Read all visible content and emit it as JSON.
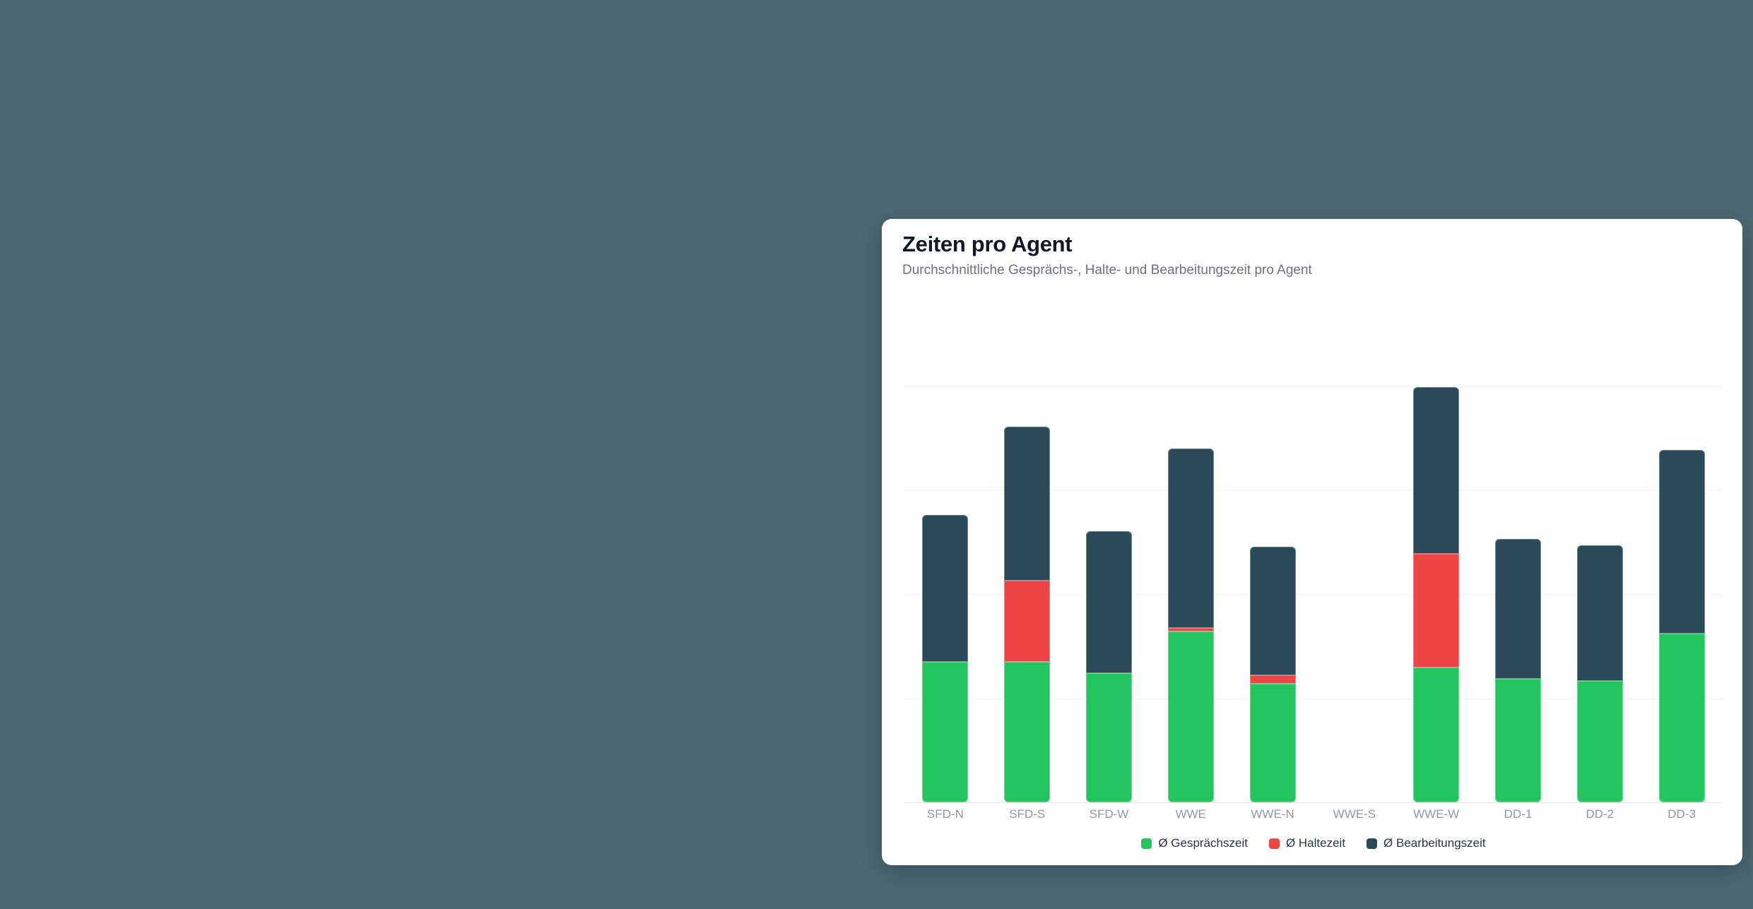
{
  "page": {
    "background_color": "#4C6871"
  },
  "card": {
    "title": "Zeiten pro Agent",
    "subtitle": "Durchschnittliche Gesprächs-, Halte- und Bearbeitungszeit pro Agent"
  },
  "chart_data": {
    "type": "bar",
    "stacked": true,
    "title": "Zeiten pro Agent",
    "subtitle": "Durchschnittliche Gesprächs-, Halte- und Bearbeitungszeit pro Agent",
    "xlabel": "",
    "ylabel": "",
    "categories": [
      "SFD-N",
      "SFD-S",
      "SFD-W",
      "WWE",
      "WWE-N",
      "WWE-S",
      "WWE-W",
      "DD-1",
      "DD-2",
      "DD-3"
    ],
    "series": [
      {
        "name": "Ø Gesprächszeit",
        "color": "#22C55E",
        "values": [
          1.35,
          1.35,
          1.24,
          1.64,
          1.14,
          0,
          1.3,
          1.19,
          1.17,
          1.62
        ]
      },
      {
        "name": "Ø Haltezeit",
        "color": "#EF4444",
        "values": [
          0,
          0.78,
          0,
          0.04,
          0.08,
          0,
          1.09,
          0,
          0,
          0
        ]
      },
      {
        "name": "Ø Bearbeitungszeit",
        "color": "#2B4A59",
        "values": [
          1.41,
          1.48,
          1.37,
          1.72,
          1.24,
          0,
          1.6,
          1.34,
          1.3,
          1.77
        ]
      }
    ],
    "y_axis": {
      "tick_labels_visible": false,
      "ylim": [
        0,
        4.8
      ],
      "gridlines_at": [
        1,
        2,
        3,
        4
      ],
      "gridline_interval": 1
    },
    "grid": true,
    "legend_position": "bottom",
    "colors": {
      "page_background": "#4C6871",
      "card_background": "#FFFFFF",
      "title_text": "#111827",
      "subtitle_text": "#6B7280",
      "axis_label_text": "#8C99A9",
      "legend_text": "#273444",
      "gridline": "#F1F3F5",
      "axis_line": "#E5E7EB"
    }
  }
}
